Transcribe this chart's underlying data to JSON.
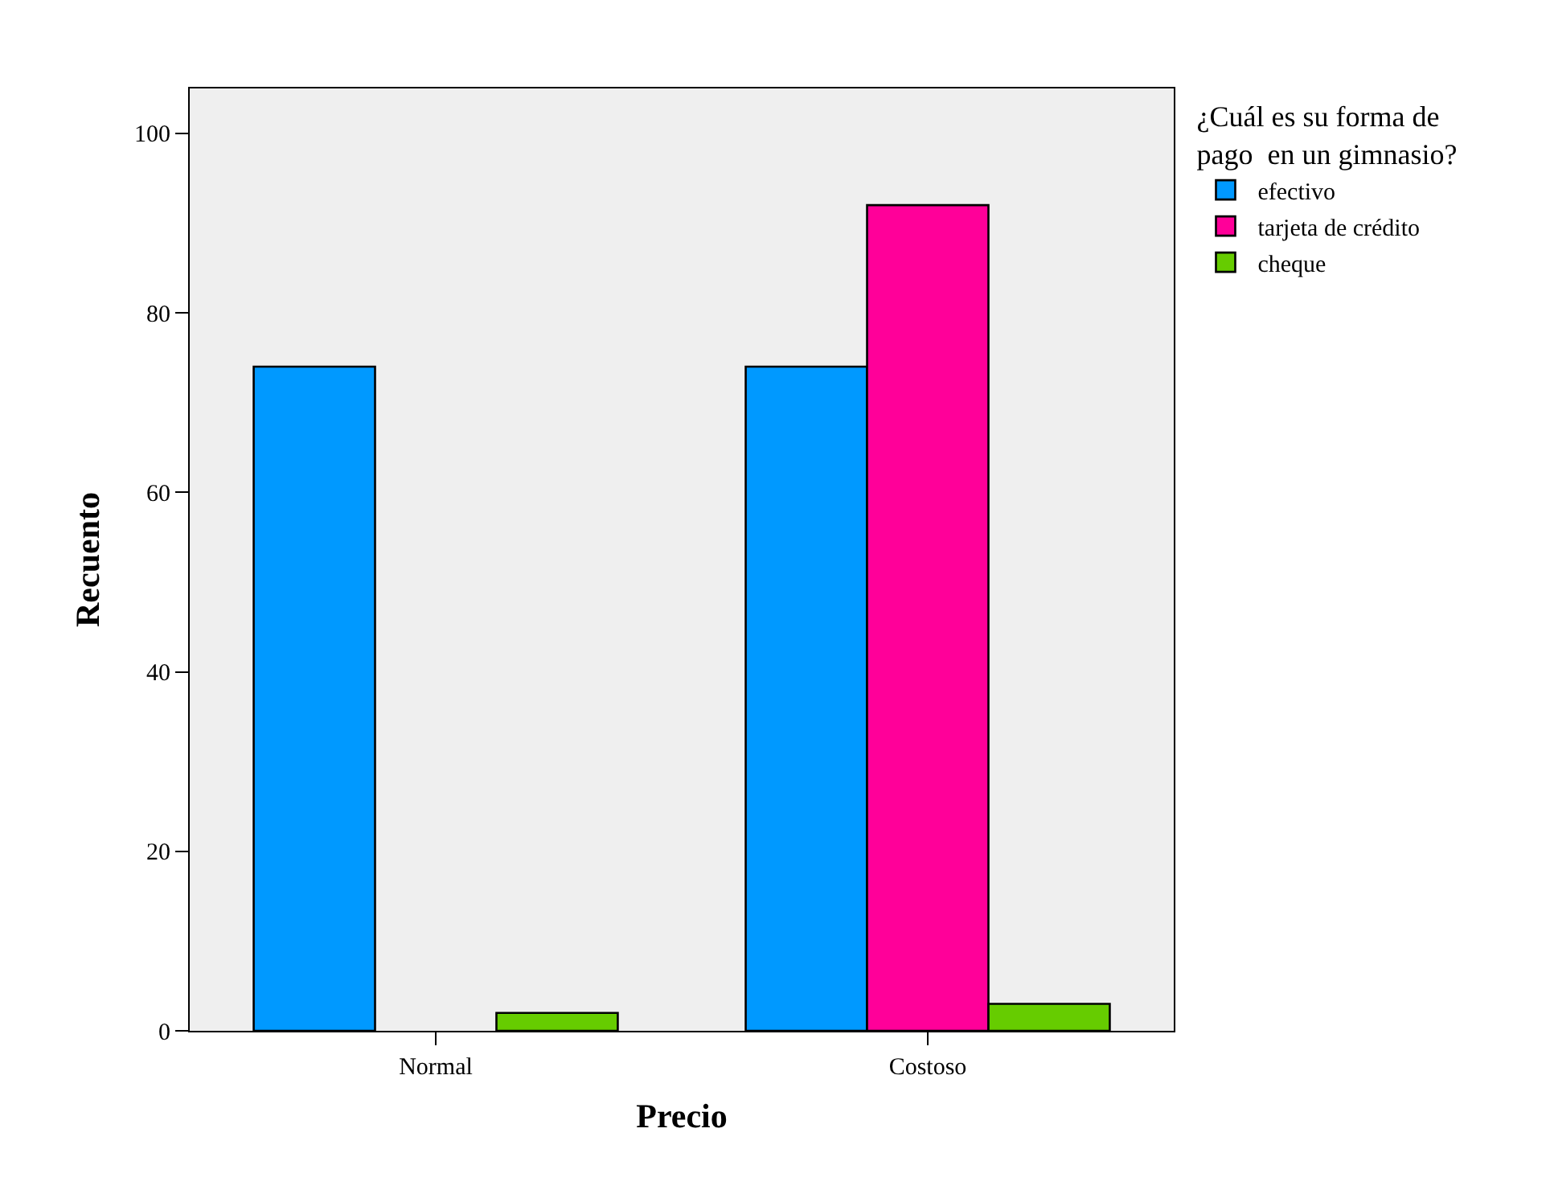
{
  "chart_data": {
    "type": "bar",
    "xlabel": "Precio",
    "ylabel": "Recuento",
    "legend_title": "¿Cuál es su forma de\npago  en un gimnasio?",
    "legend": "top right",
    "grid": false,
    "categories": [
      "Normal",
      "Costoso"
    ],
    "series": [
      {
        "name": "efectivo",
        "color": "#0099ff",
        "values": [
          74,
          74
        ]
      },
      {
        "name": "tarjeta de crédito",
        "color": "#ff0099",
        "values": [
          null,
          92
        ]
      },
      {
        "name": "cheque",
        "color": "#66cc00",
        "values": [
          2,
          3
        ]
      }
    ],
    "ylim": [
      0,
      105
    ],
    "yticks": [
      0,
      20,
      40,
      60,
      80,
      100
    ]
  }
}
